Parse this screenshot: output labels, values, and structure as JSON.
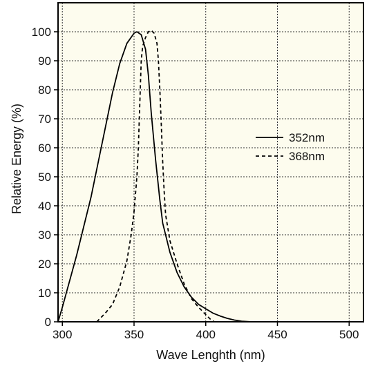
{
  "chart_data": {
    "type": "line",
    "xlabel": "Wave Lenghth (nm)",
    "ylabel": "Relative Energy (%)",
    "xlim": [
      297,
      510
    ],
    "ylim": [
      0,
      110
    ],
    "x_ticks": [
      300,
      350,
      400,
      450,
      500
    ],
    "y_ticks": [
      0,
      10,
      20,
      30,
      40,
      50,
      60,
      70,
      80,
      90,
      100
    ],
    "x_tick_labels": [
      "300",
      "350",
      "400",
      "450",
      "500"
    ],
    "y_tick_labels": [
      "0",
      "10",
      "20",
      "30",
      "40",
      "50",
      "60",
      "70",
      "80",
      "90",
      "100"
    ],
    "grid": true,
    "plot_background": "#fdfcee",
    "line_color": "#000000",
    "legend_position": "right-middle",
    "series": [
      {
        "name": "352nm",
        "style": "solid",
        "points": [
          [
            297,
            0
          ],
          [
            300,
            5
          ],
          [
            305,
            14
          ],
          [
            310,
            23
          ],
          [
            315,
            33
          ],
          [
            320,
            43
          ],
          [
            325,
            55
          ],
          [
            330,
            67
          ],
          [
            335,
            79
          ],
          [
            340,
            89
          ],
          [
            345,
            96
          ],
          [
            350,
            99.5
          ],
          [
            352,
            100
          ],
          [
            355,
            99
          ],
          [
            358,
            94
          ],
          [
            360,
            85
          ],
          [
            362,
            72
          ],
          [
            365,
            56
          ],
          [
            368,
            42
          ],
          [
            370,
            34
          ],
          [
            375,
            24
          ],
          [
            380,
            17
          ],
          [
            385,
            12
          ],
          [
            390,
            8.5
          ],
          [
            395,
            6
          ],
          [
            400,
            4.5
          ],
          [
            405,
            3
          ],
          [
            410,
            2
          ],
          [
            415,
            1.2
          ],
          [
            420,
            0.6
          ],
          [
            425,
            0.2
          ],
          [
            432,
            0
          ]
        ]
      },
      {
        "name": "368nm",
        "style": "dashed",
        "points": [
          [
            324,
            0
          ],
          [
            330,
            3
          ],
          [
            335,
            6
          ],
          [
            340,
            12
          ],
          [
            345,
            21
          ],
          [
            348,
            30
          ],
          [
            350,
            38
          ],
          [
            352,
            50
          ],
          [
            353,
            60
          ],
          [
            354,
            75
          ],
          [
            355,
            90
          ],
          [
            356,
            95
          ],
          [
            358,
            98
          ],
          [
            360,
            100
          ],
          [
            362,
            100.5
          ],
          [
            364,
            99.5
          ],
          [
            366,
            96
          ],
          [
            367,
            90
          ],
          [
            368,
            80
          ],
          [
            369,
            68
          ],
          [
            370,
            55
          ],
          [
            371,
            45
          ],
          [
            372,
            37
          ],
          [
            375,
            28
          ],
          [
            380,
            20
          ],
          [
            385,
            13
          ],
          [
            390,
            8
          ],
          [
            395,
            5
          ],
          [
            400,
            2.5
          ],
          [
            403,
            1
          ],
          [
            406,
            0
          ]
        ]
      }
    ]
  }
}
